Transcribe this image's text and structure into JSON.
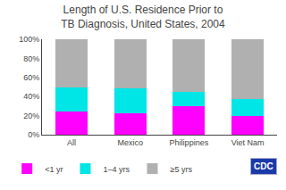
{
  "chart_data": {
    "type": "bar",
    "stacked": true,
    "title": "Length of U.S. Residence Prior to\nTB Diagnosis, United States, 2004",
    "categories": [
      "All",
      "Mexico",
      "Philippines",
      "Viet Nam"
    ],
    "series": [
      {
        "name": "<1 yr",
        "color": "#ff00ff",
        "values": [
          24,
          22,
          30,
          20
        ]
      },
      {
        "name": "1–4 yrs",
        "color": "#00e5e5",
        "values": [
          26,
          27,
          15,
          17
        ]
      },
      {
        "name": "≥5 yrs",
        "color": "#b0b0b0",
        "values": [
          50,
          51,
          55,
          63
        ]
      }
    ],
    "ylim": [
      0,
      100
    ],
    "yticks": [
      {
        "value": 0,
        "label": "0%"
      },
      {
        "value": 20,
        "label": "20%"
      },
      {
        "value": 40,
        "label": "40%"
      },
      {
        "value": 60,
        "label": "60%"
      },
      {
        "value": 80,
        "label": "80%"
      },
      {
        "value": 100,
        "label": "100%"
      }
    ],
    "grid": false,
    "legend": "bottom",
    "annotations": [
      "CDC"
    ]
  }
}
